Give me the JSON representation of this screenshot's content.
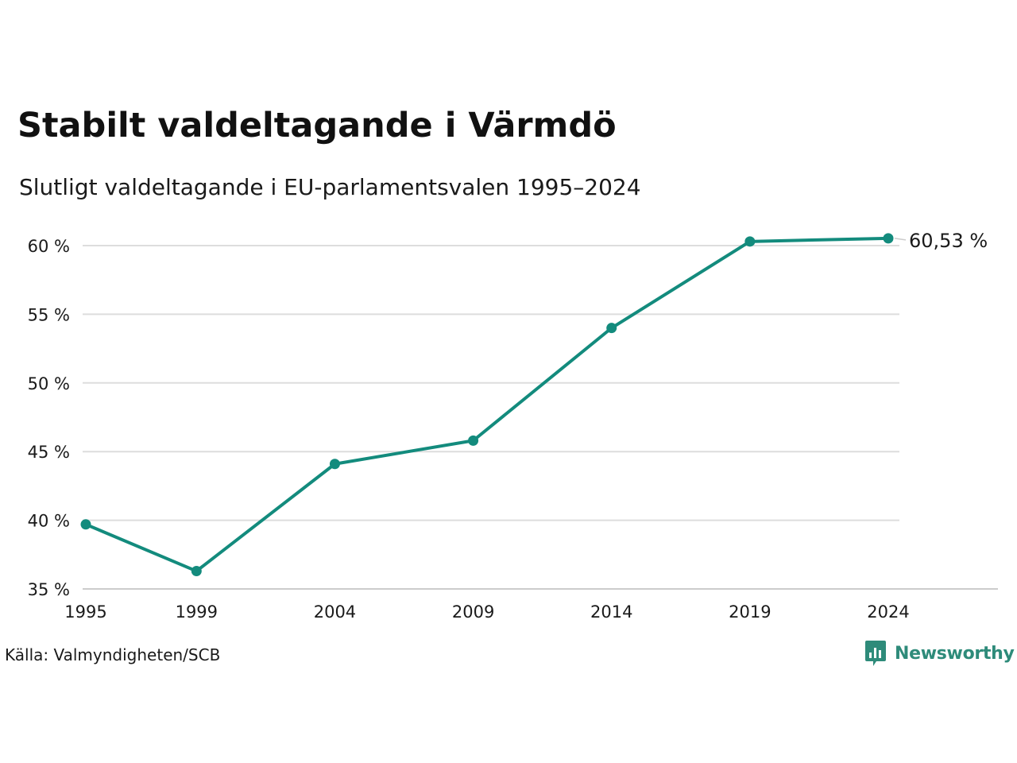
{
  "header": {
    "title": "Stabilt valdeltagande i Värmdö",
    "subtitle": "Slutligt valdeltagande i EU-parlamentsvalen 1995–2024"
  },
  "footer": {
    "source": "Källa: Valmyndigheten/SCB",
    "brand": "Newsworthy",
    "brand_icon": "bar-chart-speech-bubble-icon"
  },
  "colors": {
    "line": "#138b7d",
    "grid": "#dddddd",
    "brand": "#2e8b7a"
  },
  "chart_data": {
    "type": "line",
    "title": "Stabilt valdeltagande i Värmdö",
    "subtitle": "Slutligt valdeltagande i EU-parlamentsvalen 1995–2024",
    "x": [
      1995,
      1999,
      2004,
      2009,
      2014,
      2019,
      2024
    ],
    "x_tick_labels": [
      "1995",
      "1999",
      "2004",
      "2009",
      "2014",
      "2019",
      "2024"
    ],
    "series": [
      {
        "values": [
          39.7,
          36.3,
          44.1,
          45.8,
          54.0,
          60.3,
          60.53
        ]
      }
    ],
    "y_ticks": [
      35,
      40,
      45,
      50,
      55,
      60
    ],
    "y_tick_labels": [
      "35 %",
      "40 %",
      "45 %",
      "50 %",
      "55 %",
      "60 %"
    ],
    "ylim": [
      35,
      60.6
    ],
    "xlim": [
      1995,
      2024
    ],
    "grid": "horizontal",
    "end_label": "60,53 %",
    "source": "Källa: Valmyndigheten/SCB"
  }
}
